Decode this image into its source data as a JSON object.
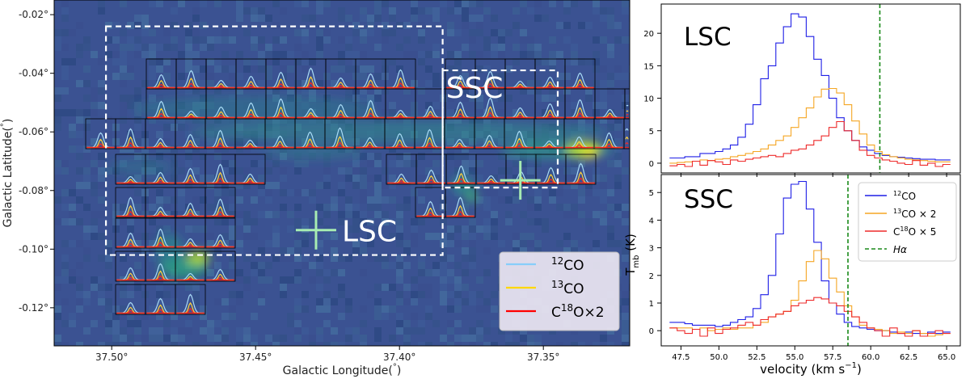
{
  "map": {
    "xlabel": "Galactic Longitude(",
    "xlabel_unit": "°",
    "xlabel_close": ")",
    "ylabel": "Galactic Latitude(",
    "ylabel_unit": "°",
    "ylabel_close": ")",
    "xticks": [
      "37.50°",
      "37.45°",
      "37.40°",
      "37.35°"
    ],
    "yticks": [
      "-0.02°",
      "-0.04°",
      "-0.06°",
      "-0.08°",
      "-0.10°",
      "-0.12°"
    ],
    "xlim": [
      37.52,
      37.32
    ],
    "ylim": [
      -0.133,
      -0.015
    ],
    "regions": [
      {
        "label": "LSC",
        "box": {
          "l1": 37.502,
          "l2": 37.385,
          "b1": -0.024,
          "b2": -0.102
        },
        "marker": {
          "l": 37.429,
          "b": -0.0935
        }
      },
      {
        "label": "SSC",
        "box": {
          "l1": 37.385,
          "l2": 37.345,
          "b1": -0.039,
          "b2": -0.079
        },
        "marker": {
          "l": 37.358,
          "b": -0.0765
        }
      }
    ],
    "legend": [
      {
        "prefix": "",
        "sup": "12",
        "base": "CO",
        "suffix": "",
        "color": "#87cefa"
      },
      {
        "prefix": "",
        "sup": "13",
        "base": "CO",
        "suffix": "",
        "color": "#ffd700"
      },
      {
        "prefix": "C",
        "sup": "18",
        "base": "O",
        "suffix": "×2",
        "color": "#ff0000"
      }
    ]
  },
  "chart_data": [
    {
      "type": "line",
      "title": "LSC",
      "xlabel": "",
      "ylabel": "",
      "xlim": [
        46.2,
        65.9
      ],
      "ylim": [
        -1.5,
        24.5
      ],
      "yticks": [
        0,
        5,
        10,
        15,
        20
      ],
      "step": true,
      "x": [
        47.0,
        47.5,
        48.0,
        48.5,
        49.0,
        49.5,
        50.0,
        50.5,
        51.0,
        51.5,
        52.0,
        52.5,
        53.0,
        53.5,
        54.0,
        54.5,
        55.0,
        55.5,
        56.0,
        56.5,
        57.0,
        57.5,
        58.0,
        58.5,
        59.0,
        59.5,
        60.0,
        60.5,
        61.0,
        61.5,
        62.0,
        62.5,
        63.0,
        63.5,
        64.0,
        64.5,
        65.0
      ],
      "series": [
        {
          "name": "12CO",
          "color": "#1f1fe6",
          "values": [
            0.8,
            0.8,
            1.0,
            1.0,
            1.5,
            1.5,
            1.8,
            2.2,
            2.8,
            4.0,
            6.0,
            9.0,
            13.0,
            15.0,
            18.5,
            21.0,
            23.0,
            22.5,
            19.5,
            16.0,
            13.5,
            10.0,
            7.0,
            5.0,
            3.5,
            2.5,
            2.0,
            1.5,
            1.2,
            1.0,
            0.9,
            0.8,
            0.7,
            0.6,
            0.6,
            0.5,
            0.5
          ]
        },
        {
          "name": "13CO × 2",
          "color": "#f5a623",
          "values": [
            0.0,
            0.1,
            0.2,
            0.3,
            0.5,
            0.4,
            0.6,
            0.7,
            1.0,
            1.2,
            1.5,
            1.8,
            2.2,
            2.8,
            3.5,
            4.2,
            5.5,
            7.0,
            8.5,
            10.2,
            11.4,
            11.5,
            10.8,
            9.0,
            6.5,
            4.5,
            2.8,
            1.8,
            1.3,
            1.0,
            0.8,
            0.6,
            0.5,
            0.4,
            0.3,
            0.2,
            0.2
          ]
        },
        {
          "name": "C18O × 5",
          "color": "#ee2a2a",
          "values": [
            -0.4,
            -0.2,
            -0.5,
            0.3,
            -0.3,
            0.4,
            0.2,
            -0.2,
            0.5,
            0.3,
            0.6,
            0.8,
            1.0,
            1.2,
            1.0,
            1.5,
            2.0,
            2.2,
            2.8,
            3.5,
            4.2,
            5.5,
            6.4,
            5.0,
            3.5,
            2.0,
            1.2,
            0.8,
            0.5,
            0.3,
            0.0,
            -0.2,
            0.4,
            -0.3,
            0.0,
            -0.5,
            -0.2
          ]
        }
      ],
      "vline": {
        "name": "Hα",
        "x": 60.6,
        "color": "#1a8a1a"
      }
    },
    {
      "type": "line",
      "title": "SSC",
      "xlabel": "velocity (km s",
      "xlabel_sup": "−1",
      "xlabel_close": ")",
      "ylabel": "T",
      "ylabel_sub": "mb",
      "ylabel_unit": " (K)",
      "xlim": [
        46.2,
        65.9
      ],
      "ylim": [
        -0.55,
        5.65
      ],
      "yticks": [
        0,
        1,
        2,
        3,
        4,
        5
      ],
      "xticks": [
        "47.5",
        "50.0",
        "52.5",
        "55.0",
        "57.5",
        "60.0",
        "62.5",
        "65.0"
      ],
      "xtick_values": [
        47.5,
        50.0,
        52.5,
        55.0,
        57.5,
        60.0,
        62.5,
        65.0
      ],
      "step": true,
      "x": [
        47.0,
        47.5,
        48.0,
        48.5,
        49.0,
        49.5,
        50.0,
        50.5,
        51.0,
        51.5,
        52.0,
        52.5,
        53.0,
        53.5,
        54.0,
        54.5,
        55.0,
        55.5,
        56.0,
        56.5,
        57.0,
        57.5,
        58.0,
        58.5,
        59.0,
        59.5,
        60.0,
        60.5,
        61.0,
        61.5,
        62.0,
        62.5,
        63.0,
        63.5,
        64.0,
        64.5,
        65.0
      ],
      "series": [
        {
          "name": "12CO",
          "color": "#1f1fe6",
          "values": [
            0.3,
            0.3,
            0.25,
            0.2,
            0.2,
            0.2,
            0.15,
            0.2,
            0.3,
            0.4,
            0.5,
            0.8,
            1.3,
            2.0,
            3.5,
            4.8,
            5.3,
            5.4,
            4.4,
            3.2,
            1.8,
            1.0,
            0.6,
            0.3,
            0.15,
            0.1,
            0.05,
            0.0,
            0.0,
            -0.05,
            -0.1,
            -0.05,
            -0.1,
            -0.1,
            -0.05,
            -0.1,
            -0.05
          ]
        },
        {
          "name": "13CO × 2",
          "color": "#f5a623",
          "values": [
            0.1,
            0.1,
            0.1,
            0.05,
            0.1,
            0.0,
            0.05,
            0.1,
            0.05,
            0.1,
            0.1,
            0.2,
            0.3,
            0.5,
            0.6,
            0.7,
            1.1,
            1.8,
            2.5,
            2.9,
            2.6,
            1.9,
            1.4,
            0.9,
            0.5,
            0.2,
            0.1,
            0.05,
            0.0,
            -0.1,
            -0.05,
            -0.1,
            0.0,
            -0.1,
            -0.2,
            -0.15,
            -0.1
          ]
        },
        {
          "name": "C18O × 5",
          "color": "#ee2a2a",
          "values": [
            0.1,
            0.0,
            -0.1,
            0.05,
            -0.2,
            0.1,
            -0.1,
            0.05,
            0.1,
            0.2,
            0.3,
            0.2,
            0.4,
            0.5,
            0.6,
            0.7,
            0.9,
            1.0,
            1.1,
            1.2,
            1.15,
            1.0,
            0.9,
            0.7,
            0.5,
            0.3,
            0.1,
            0.0,
            -0.2,
            0.1,
            -0.1,
            -0.2,
            0.0,
            -0.2,
            -0.1,
            0.0,
            -0.1
          ]
        }
      ],
      "vline": {
        "name": "Hα",
        "x": 58.5,
        "color": "#1a8a1a"
      },
      "legend": [
        {
          "prefix": "",
          "sup": "12",
          "base": "CO",
          "suffix": "",
          "color": "#1f1fe6"
        },
        {
          "prefix": "",
          "sup": "13",
          "base": "CO",
          "suffix": " × 2",
          "color": "#f5a623"
        },
        {
          "prefix": "C",
          "sup": "18",
          "base": "O",
          "suffix": " × 5",
          "color": "#ee2a2a"
        },
        {
          "prefix": "",
          "sup": "",
          "base": "Hα",
          "suffix": "",
          "color": "#1a8a1a",
          "dashed": true
        }
      ]
    }
  ]
}
